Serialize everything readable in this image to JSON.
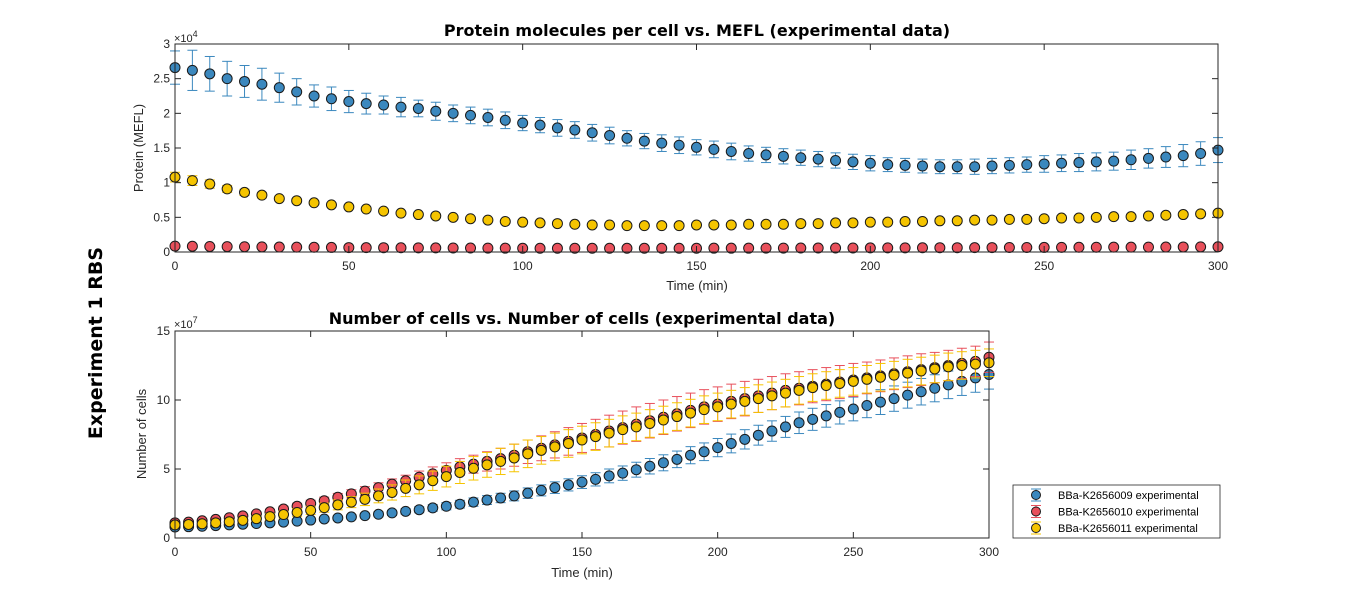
{
  "side_label": "Experiment 1 RBS",
  "colors": {
    "BBa-K2656009": "#3b88be",
    "BBa-K2656010": "#e8505b",
    "BBa-K2656011": "#f5c400",
    "axis": "#262626"
  },
  "chart_data": [
    {
      "type": "scatter",
      "title": "Protein molecules per cell vs. MEFL (experimental data)",
      "xlabel": "Time (min)",
      "ylabel": "Protein (MEFL)",
      "xlim": [
        0,
        300
      ],
      "ylim": [
        0,
        30000
      ],
      "y_exponent_label": "×10",
      "y_exponent": "4",
      "xticks": [
        0,
        50,
        100,
        150,
        200,
        250,
        300
      ],
      "xtick_labels": [
        "0",
        "50",
        "100",
        "150",
        "200",
        "250",
        "300"
      ],
      "yticks": [
        0,
        5000,
        10000,
        15000,
        20000,
        25000,
        30000
      ],
      "ytick_labels": [
        "0",
        "0.5",
        "1",
        "1.5",
        "2",
        "2.5",
        "3"
      ],
      "grid": false,
      "x": [
        0,
        5,
        10,
        15,
        20,
        25,
        30,
        35,
        40,
        45,
        50,
        55,
        60,
        65,
        70,
        75,
        80,
        85,
        90,
        95,
        100,
        105,
        110,
        115,
        120,
        125,
        130,
        135,
        140,
        145,
        150,
        155,
        160,
        165,
        170,
        175,
        180,
        185,
        190,
        195,
        200,
        205,
        210,
        215,
        220,
        225,
        230,
        235,
        240,
        245,
        250,
        255,
        260,
        265,
        270,
        275,
        280,
        285,
        290,
        295,
        300
      ],
      "series": [
        {
          "name": "BBa-K2656009 experimental",
          "values": [
            26600,
            26200,
            25700,
            25000,
            24600,
            24200,
            23700,
            23100,
            22500,
            22100,
            21700,
            21400,
            21200,
            20900,
            20700,
            20300,
            20000,
            19700,
            19400,
            19000,
            18600,
            18300,
            17900,
            17600,
            17200,
            16800,
            16400,
            16000,
            15700,
            15400,
            15100,
            14800,
            14500,
            14200,
            14000,
            13800,
            13600,
            13400,
            13200,
            13000,
            12800,
            12600,
            12500,
            12400,
            12300,
            12300,
            12300,
            12400,
            12500,
            12600,
            12700,
            12800,
            12900,
            13000,
            13100,
            13300,
            13500,
            13700,
            13900,
            14200,
            14700
          ],
          "errors": [
            2400,
            2900,
            2500,
            2500,
            2300,
            2300,
            2100,
            1900,
            1600,
            1700,
            1600,
            1500,
            1300,
            1400,
            1200,
            1300,
            1200,
            1200,
            1200,
            1200,
            1100,
            1100,
            1200,
            1200,
            1200,
            1200,
            1100,
            1100,
            1200,
            1200,
            1100,
            1200,
            1200,
            1100,
            1100,
            1100,
            1100,
            1100,
            1100,
            1100,
            1100,
            1000,
            1000,
            1000,
            1000,
            1000,
            1100,
            1100,
            1100,
            1100,
            1200,
            1200,
            1300,
            1300,
            1300,
            1400,
            1400,
            1500,
            1600,
            1700,
            1800
          ]
        },
        {
          "name": "BBa-K2656010 experimental",
          "values": [
            850,
            830,
            800,
            780,
            760,
            740,
            720,
            700,
            680,
            660,
            640,
            630,
            620,
            610,
            600,
            590,
            580,
            570,
            560,
            550,
            540,
            540,
            540,
            540,
            540,
            540,
            540,
            540,
            540,
            540,
            540,
            550,
            550,
            550,
            560,
            560,
            570,
            570,
            580,
            580,
            590,
            600,
            600,
            610,
            620,
            620,
            630,
            640,
            650,
            650,
            660,
            670,
            680,
            690,
            700,
            700,
            710,
            720,
            730,
            740,
            750
          ],
          "errors": [
            150,
            150,
            140,
            140,
            130,
            130,
            120,
            120,
            120,
            110,
            110,
            110,
            110,
            110,
            100,
            100,
            100,
            100,
            100,
            100,
            100,
            100,
            100,
            100,
            100,
            100,
            100,
            100,
            100,
            100,
            100,
            100,
            100,
            100,
            100,
            100,
            100,
            100,
            100,
            100,
            100,
            100,
            100,
            100,
            100,
            100,
            100,
            100,
            100,
            100,
            100,
            100,
            100,
            100,
            100,
            100,
            100,
            100,
            100,
            100,
            100
          ]
        },
        {
          "name": "BBa-K2656011 experimental",
          "values": [
            10800,
            10300,
            9800,
            9100,
            8600,
            8200,
            7700,
            7400,
            7100,
            6800,
            6500,
            6200,
            5900,
            5600,
            5400,
            5200,
            5000,
            4800,
            4600,
            4400,
            4300,
            4200,
            4100,
            4000,
            3900,
            3900,
            3800,
            3800,
            3800,
            3800,
            3900,
            3900,
            3900,
            4000,
            4000,
            4000,
            4100,
            4100,
            4200,
            4200,
            4300,
            4300,
            4400,
            4400,
            4500,
            4500,
            4600,
            4600,
            4700,
            4700,
            4800,
            4900,
            4900,
            5000,
            5100,
            5100,
            5200,
            5300,
            5400,
            5500,
            5600
          ],
          "errors": [
            700,
            700,
            600,
            500,
            450,
            400,
            350,
            300,
            300,
            280,
            260,
            250,
            250,
            250,
            250,
            250,
            250,
            250,
            250,
            250,
            250,
            250,
            250,
            250,
            250,
            250,
            250,
            280,
            300,
            300,
            320,
            320,
            330,
            330,
            350,
            350,
            350,
            350,
            350,
            350,
            350,
            350,
            350,
            350,
            350,
            350,
            350,
            350,
            350,
            350,
            350,
            350,
            350,
            350,
            350,
            350,
            350,
            350,
            350,
            350,
            350
          ]
        }
      ]
    },
    {
      "type": "scatter",
      "title": "Number of cells vs. Number of cells (experimental data)",
      "xlabel": "Time (min)",
      "ylabel": "Number of cells",
      "xlim": [
        0,
        300
      ],
      "ylim": [
        0,
        150000000
      ],
      "y_exponent_label": "×10",
      "y_exponent": "7",
      "xticks": [
        0,
        50,
        100,
        150,
        200,
        250,
        300
      ],
      "xtick_labels": [
        "0",
        "50",
        "100",
        "150",
        "200",
        "250",
        "300"
      ],
      "yticks": [
        0,
        50000000,
        100000000,
        150000000
      ],
      "ytick_labels": [
        "0",
        "5",
        "10",
        "15"
      ],
      "grid": false,
      "legend_location": "outside-bottom-right",
      "x": [
        0,
        5,
        10,
        15,
        20,
        25,
        30,
        35,
        40,
        45,
        50,
        55,
        60,
        65,
        70,
        75,
        80,
        85,
        90,
        95,
        100,
        105,
        110,
        115,
        120,
        125,
        130,
        135,
        140,
        145,
        150,
        155,
        160,
        165,
        170,
        175,
        180,
        185,
        190,
        195,
        200,
        205,
        210,
        215,
        220,
        225,
        230,
        235,
        240,
        245,
        250,
        255,
        260,
        265,
        270,
        275,
        280,
        285,
        290,
        295,
        300
      ],
      "series": [
        {
          "name": "BBa-K2656009 experimental",
          "values": [
            8000000,
            8200000,
            8500000,
            9000000,
            9500000,
            10000000,
            10500000,
            11000000,
            11500000,
            12200000,
            13000000,
            13800000,
            14500000,
            15300000,
            16200000,
            17200000,
            18200000,
            19300000,
            20500000,
            21800000,
            23000000,
            24500000,
            26000000,
            27500000,
            29000000,
            30500000,
            32500000,
            34500000,
            36500000,
            38500000,
            40500000,
            42500000,
            45000000,
            47000000,
            49500000,
            52000000,
            54500000,
            57000000,
            60000000,
            62500000,
            65500000,
            68500000,
            71500000,
            74500000,
            77500000,
            80500000,
            83500000,
            86000000,
            88500000,
            91000000,
            93500000,
            96000000,
            98500000,
            101000000,
            103500000,
            106000000,
            108500000,
            111000000,
            113500000,
            116000000,
            118500000
          ],
          "errors": [
            1000000,
            1000000,
            1000000,
            1000000,
            1000000,
            1000000,
            1000000,
            1200000,
            1200000,
            1300000,
            1300000,
            1400000,
            1500000,
            1600000,
            1700000,
            1800000,
            1900000,
            2000000,
            2200000,
            2400000,
            2600000,
            2800000,
            3000000,
            3200000,
            3400000,
            3600000,
            3800000,
            4000000,
            4200000,
            4400000,
            4600000,
            4800000,
            5000000,
            5200000,
            5400000,
            5600000,
            5800000,
            6000000,
            6200000,
            6400000,
            6600000,
            6800000,
            7000000,
            7200000,
            7400000,
            7600000,
            7800000,
            8000000,
            8200000,
            8400000,
            8600000,
            8800000,
            9000000,
            9200000,
            9400000,
            9600000,
            9800000,
            10000000,
            10200000,
            10400000,
            10600000
          ]
        },
        {
          "name": "BBa-K2656010 experimental",
          "values": [
            11000000,
            11500000,
            12500000,
            13500000,
            14700000,
            16000000,
            17500000,
            19000000,
            21000000,
            23000000,
            25000000,
            27000000,
            29500000,
            32000000,
            34000000,
            36500000,
            39000000,
            41500000,
            44000000,
            46500000,
            49000000,
            51500000,
            53500000,
            55500000,
            57500000,
            60000000,
            62500000,
            65000000,
            67500000,
            70000000,
            72500000,
            75000000,
            77500000,
            80000000,
            82500000,
            85000000,
            87500000,
            90000000,
            92500000,
            95000000,
            97000000,
            99000000,
            101000000,
            103000000,
            105000000,
            107000000,
            108500000,
            110000000,
            111500000,
            113000000,
            114500000,
            116000000,
            117500000,
            119000000,
            120500000,
            122000000,
            123500000,
            125000000,
            126500000,
            128000000,
            131000000
          ],
          "errors": [
            1000000,
            1000000,
            1000000,
            1000000,
            1000000,
            1200000,
            1500000,
            1800000,
            2000000,
            2200000,
            2400000,
            2600000,
            2800000,
            3000000,
            3200000,
            3500000,
            3800000,
            4000000,
            4500000,
            5000000,
            5500000,
            6000000,
            6500000,
            7000000,
            7500000,
            8000000,
            8500000,
            9000000,
            9500000,
            10000000,
            10500000,
            11000000,
            11500000,
            12000000,
            12500000,
            12500000,
            12500000,
            12500000,
            12500000,
            12500000,
            12500000,
            12500000,
            12500000,
            12000000,
            12000000,
            12000000,
            12000000,
            12000000,
            12000000,
            12000000,
            12000000,
            11500000,
            11500000,
            11500000,
            11500000,
            11500000,
            11000000,
            11000000,
            11000000,
            11000000,
            11000000
          ]
        },
        {
          "name": "BBa-K2656011 experimental",
          "values": [
            9500000,
            9800000,
            10300000,
            11000000,
            11800000,
            12800000,
            14000000,
            15500000,
            17000000,
            18500000,
            20000000,
            22000000,
            24000000,
            26000000,
            28000000,
            30500000,
            33000000,
            36000000,
            38500000,
            41500000,
            44500000,
            47500000,
            50500000,
            53000000,
            55500000,
            58000000,
            61000000,
            63500000,
            66000000,
            68500000,
            71000000,
            73500000,
            76000000,
            78500000,
            80500000,
            83000000,
            85500000,
            88000000,
            90500000,
            93000000,
            95000000,
            97000000,
            99000000,
            101000000,
            103000000,
            105000000,
            107000000,
            109000000,
            110500000,
            112000000,
            113500000,
            115000000,
            116500000,
            118000000,
            119500000,
            121000000,
            122500000,
            124000000,
            125000000,
            126000000,
            127000000
          ],
          "errors": [
            1200000,
            1200000,
            1200000,
            1200000,
            1500000,
            1800000,
            2000000,
            2300000,
            2500000,
            2800000,
            3000000,
            3300000,
            3600000,
            4000000,
            4500000,
            5000000,
            5500000,
            6000000,
            6500000,
            7000000,
            7500000,
            8000000,
            8500000,
            9000000,
            9500000,
            10000000,
            10000000,
            10000000,
            10000000,
            10000000,
            10000000,
            10000000,
            10000000,
            10000000,
            10000000,
            10000000,
            10000000,
            10000000,
            10000000,
            10000000,
            10000000,
            10000000,
            10000000,
            10000000,
            10000000,
            10000000,
            10000000,
            10000000,
            10000000,
            10000000,
            10000000,
            10000000,
            10000000,
            10000000,
            10000000,
            10000000,
            10000000,
            10000000,
            10000000,
            10000000,
            10000000
          ]
        }
      ]
    }
  ]
}
